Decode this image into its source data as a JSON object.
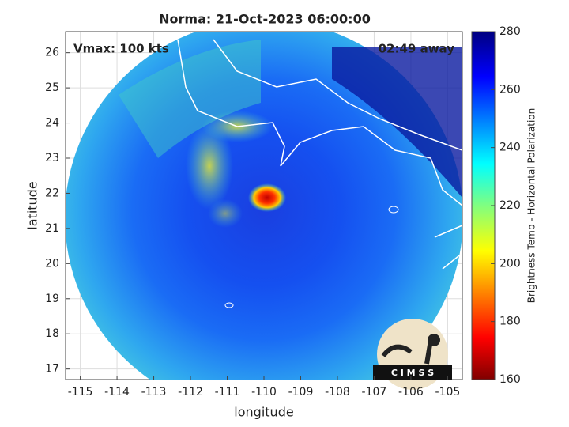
{
  "title": "Norma: 21-Oct-2023 06:00:00",
  "annotations": {
    "vmax": "Vmax: 100 kts",
    "time_away": "02:49 away"
  },
  "map": {
    "xlabel": "longitude",
    "ylabel": "latitude",
    "xlim": [
      -115.4,
      -104.6
    ],
    "ylim": [
      16.7,
      26.6
    ],
    "xticks": [
      -115,
      -114,
      -113,
      -112,
      -111,
      -110,
      -109,
      -108,
      -107,
      -106,
      -105
    ],
    "yticks": [
      17,
      18,
      19,
      20,
      21,
      22,
      23,
      24,
      25,
      26
    ],
    "grid": true
  },
  "colorbar": {
    "label": "Brightness Temp - Horizontal Polarization",
    "clim": [
      160,
      280
    ],
    "ticks": [
      160,
      180,
      200,
      220,
      240,
      260,
      280
    ]
  },
  "logo": {
    "text": "C I M S S"
  }
}
